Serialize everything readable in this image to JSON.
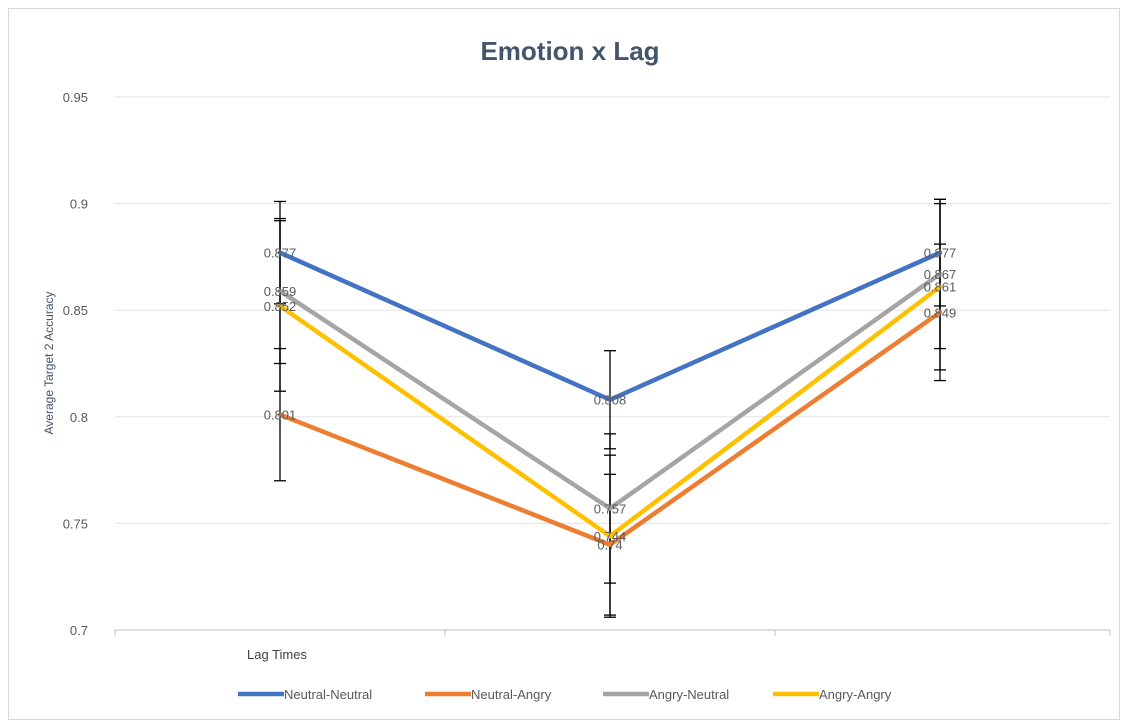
{
  "chart_data": {
    "type": "line",
    "title": "Emotion x Lag",
    "xlabel": "Lag Times",
    "ylabel": "Average Target 2 Accuracy",
    "ylim": [
      0.7,
      0.95
    ],
    "yticks": [
      "0.7",
      "0.75",
      "0.8",
      "0.85",
      "0.9",
      "0.95"
    ],
    "categories": [
      "",
      "",
      ""
    ],
    "grid": true,
    "legend_position": "bottom",
    "series": [
      {
        "name": "Neutral-Neutral",
        "color": "#4472c4",
        "values": [
          0.877,
          0.808,
          0.877
        ],
        "labels": [
          "0.877",
          "0.808",
          "0.877"
        ],
        "errors": [
          0.024,
          0.023,
          0.025
        ]
      },
      {
        "name": "Neutral-Angry",
        "color": "#ed7d31",
        "values": [
          0.801,
          0.74,
          0.849
        ],
        "labels": [
          "0.801",
          "0.74",
          "0.849"
        ],
        "errors": [
          0.031,
          0.033,
          0.032
        ]
      },
      {
        "name": "Angry-Neutral",
        "color": "#a5a5a5",
        "values": [
          0.859,
          0.757,
          0.867
        ],
        "labels": [
          "0.859",
          "0.757",
          "0.867"
        ],
        "errors": [
          0.034,
          0.035,
          0.035
        ]
      },
      {
        "name": "Angry-Angry",
        "color": "#ffc000",
        "values": [
          0.852,
          0.744,
          0.861
        ],
        "labels": [
          "0.852",
          "0.744",
          "0.861"
        ],
        "errors": [
          0.04,
          0.038,
          0.039
        ]
      }
    ]
  }
}
